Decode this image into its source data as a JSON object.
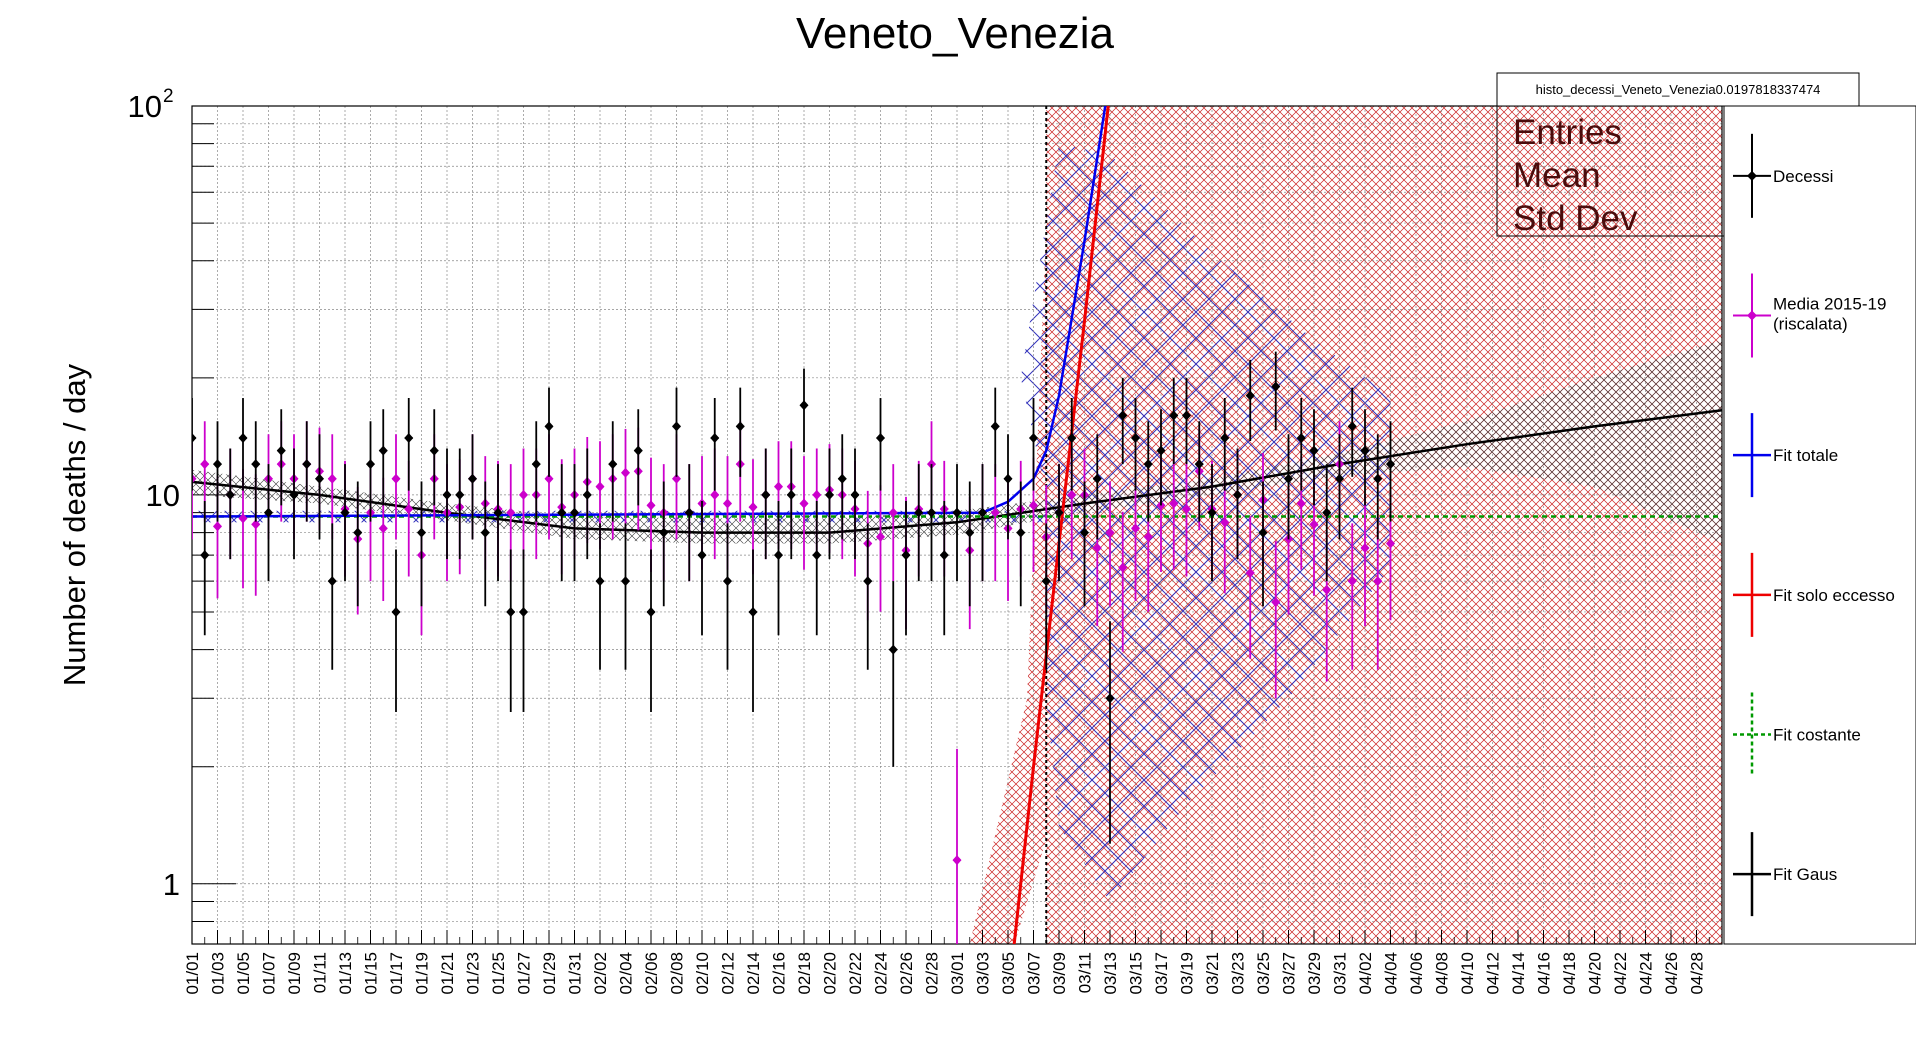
{
  "colors": {
    "decessi": "#000000",
    "media": "#cc00cc",
    "fit_totale": "#0000ee",
    "fit_eccesso": "#ee0000",
    "fit_costante": "#009900",
    "fit_gaus": "#000000",
    "hatch_red": "#cc2222",
    "hatch_blue": "#3333bb"
  },
  "chart_data": {
    "type": "scatter",
    "title": "Veneto_Venezia",
    "ylabel": "Number of deaths / day",
    "xlabel": "",
    "log_y": true,
    "ylim": [
      0.7,
      100
    ],
    "x_index_range": [
      0,
      120
    ],
    "grid": true,
    "y_tick_labels": [
      {
        "value": 1,
        "label": "1",
        "exp": ""
      },
      {
        "value": 10,
        "label": "10",
        "exp": ""
      },
      {
        "value": 100,
        "label": "10",
        "exp": "2"
      }
    ],
    "x_tick_labels": [
      "01/01",
      "01/03",
      "01/05",
      "01/07",
      "01/09",
      "01/11",
      "01/13",
      "01/15",
      "01/17",
      "01/19",
      "01/21",
      "01/23",
      "01/25",
      "01/27",
      "01/29",
      "01/31",
      "02/02",
      "02/04",
      "02/06",
      "02/08",
      "02/10",
      "02/12",
      "02/14",
      "02/16",
      "02/18",
      "02/20",
      "02/22",
      "02/24",
      "02/26",
      "02/28",
      "03/01",
      "03/03",
      "03/05",
      "03/07",
      "03/09",
      "03/11",
      "03/13",
      "03/15",
      "03/17",
      "03/19",
      "03/21",
      "03/23",
      "03/25",
      "03/27",
      "03/29",
      "03/31",
      "04/02",
      "04/04",
      "04/06",
      "04/08",
      "04/10",
      "04/12",
      "04/14",
      "04/16",
      "04/18",
      "04/20",
      "04/22",
      "04/24",
      "04/26",
      "04/28"
    ],
    "vertical_marker_day": 67,
    "stats_box": {
      "name": "histo_decessi_Veneto_Venezia0.0197818337474",
      "rows": [
        "Entries",
        "Mean",
        "Std Dev"
      ]
    },
    "legend": [
      {
        "label": "Decessi",
        "label2": "",
        "style": "points",
        "color": "#000000"
      },
      {
        "label": "Media 2015-19",
        "label2": "(riscalata)",
        "style": "points",
        "color": "#cc00cc"
      },
      {
        "label": "Fit totale",
        "label2": "",
        "style": "line",
        "color": "#0000ee"
      },
      {
        "label": "Fit solo eccesso",
        "label2": "",
        "style": "line",
        "color": "#ee0000"
      },
      {
        "label": "Fit costante",
        "label2": "",
        "style": "dashed",
        "color": "#009900"
      },
      {
        "label": "Fit Gaus",
        "label2": "",
        "style": "line",
        "color": "#000000"
      }
    ],
    "series": [
      {
        "name": "Decessi",
        "x": [
          0,
          1,
          2,
          3,
          4,
          5,
          6,
          7,
          8,
          9,
          10,
          11,
          12,
          13,
          14,
          15,
          16,
          17,
          18,
          19,
          20,
          21,
          22,
          23,
          24,
          25,
          26,
          27,
          28,
          29,
          30,
          31,
          32,
          33,
          34,
          35,
          36,
          37,
          38,
          39,
          40,
          41,
          42,
          43,
          44,
          45,
          46,
          47,
          48,
          49,
          50,
          51,
          52,
          53,
          54,
          55,
          56,
          57,
          58,
          59,
          60,
          61,
          62,
          63,
          64,
          65,
          66,
          67,
          68,
          69,
          70,
          71,
          72,
          73,
          74,
          75,
          76,
          77,
          78,
          79,
          80,
          81,
          82,
          83,
          84,
          85,
          86,
          87,
          88,
          89,
          90,
          91,
          92,
          93,
          94
        ],
        "y": [
          14,
          7,
          12,
          10,
          14,
          12,
          9,
          13,
          10,
          12,
          11,
          6,
          9,
          8,
          12,
          13,
          5,
          14,
          8,
          13,
          10,
          10,
          11,
          8,
          9,
          5,
          5,
          12,
          15,
          9,
          9,
          10,
          6,
          12,
          6,
          13,
          5,
          8,
          15,
          9,
          7,
          14,
          6,
          15,
          5,
          10,
          7,
          10,
          17,
          7,
          10,
          11,
          10,
          6,
          14,
          4,
          7,
          9,
          9,
          7,
          9,
          8,
          9,
          15,
          11,
          8,
          14,
          6,
          9,
          14,
          8,
          11,
          3,
          16,
          14,
          12,
          13,
          16,
          16,
          12,
          9,
          14,
          10,
          18,
          8,
          19,
          11,
          14,
          13,
          9,
          11,
          15,
          13,
          11,
          12
        ]
      },
      {
        "name": "Media 2015-19 (riscalata)",
        "x": [
          0,
          1,
          2,
          3,
          4,
          5,
          6,
          7,
          8,
          9,
          10,
          11,
          12,
          13,
          14,
          15,
          16,
          17,
          18,
          19,
          20,
          21,
          22,
          23,
          24,
          25,
          26,
          27,
          28,
          29,
          30,
          31,
          32,
          33,
          34,
          35,
          36,
          37,
          38,
          39,
          40,
          41,
          42,
          43,
          44,
          45,
          46,
          47,
          48,
          49,
          50,
          51,
          52,
          53,
          54,
          55,
          56,
          57,
          58,
          59,
          60,
          61,
          62,
          63,
          64,
          65,
          66,
          67,
          68,
          69,
          70,
          71,
          72,
          73,
          74,
          75,
          76,
          77,
          78,
          79,
          80,
          81,
          82,
          83,
          84,
          85,
          86,
          87,
          88,
          89,
          90,
          91,
          92,
          93,
          94
        ],
        "y": [
          11,
          12,
          8.3,
          10,
          8.7,
          8.4,
          11,
          12,
          11,
          12,
          11.5,
          11,
          9.2,
          7.7,
          9,
          8.2,
          11,
          9.2,
          7,
          11,
          9,
          9.3,
          11,
          9.5,
          9.2,
          9,
          10,
          10,
          11,
          9.3,
          10,
          10.8,
          10.5,
          11,
          11.4,
          11.5,
          9.4,
          9,
          11,
          9,
          9.5,
          10,
          9.5,
          12,
          9.3,
          10,
          10.5,
          10.5,
          9.5,
          10,
          10.3,
          10,
          9.2,
          7.5,
          7.8,
          9,
          7.2,
          9.2,
          12,
          9.2,
          1.15,
          7.2,
          9,
          9,
          8.2,
          9.2,
          9.4,
          7.8,
          9,
          10,
          10,
          7.3,
          8,
          6.5,
          8.2,
          7.8,
          9.4,
          9.5,
          9.2,
          11.5,
          9.2,
          8.5,
          10,
          6.3,
          9.7,
          5.3,
          7.7,
          9.5,
          8.4,
          5.7,
          12,
          6,
          7.3,
          6,
          7.5
        ]
      }
    ],
    "fits": [
      {
        "name": "Fit Gaus",
        "x": [
          0,
          10,
          20,
          30,
          40,
          50,
          60,
          70,
          80,
          90,
          100,
          110,
          120
        ],
        "y": [
          10.8,
          10,
          9,
          8.2,
          8.0,
          8.0,
          8.5,
          9.5,
          10.5,
          12,
          13.5,
          15,
          16.5
        ]
      },
      {
        "name": "Fit costante",
        "x": [
          0,
          120
        ],
        "y": [
          8.8,
          8.8
        ]
      },
      {
        "name": "Fit totale",
        "x": [
          0,
          62,
          64,
          66,
          67,
          68,
          70,
          72
        ],
        "y": [
          8.8,
          9.0,
          9.6,
          11,
          13,
          18,
          45,
          120
        ]
      },
      {
        "name": "Fit solo eccesso",
        "x": [
          64,
          66,
          68,
          70,
          72
        ],
        "y": [
          0.5,
          2,
          7.5,
          28,
          110
        ]
      }
    ]
  }
}
